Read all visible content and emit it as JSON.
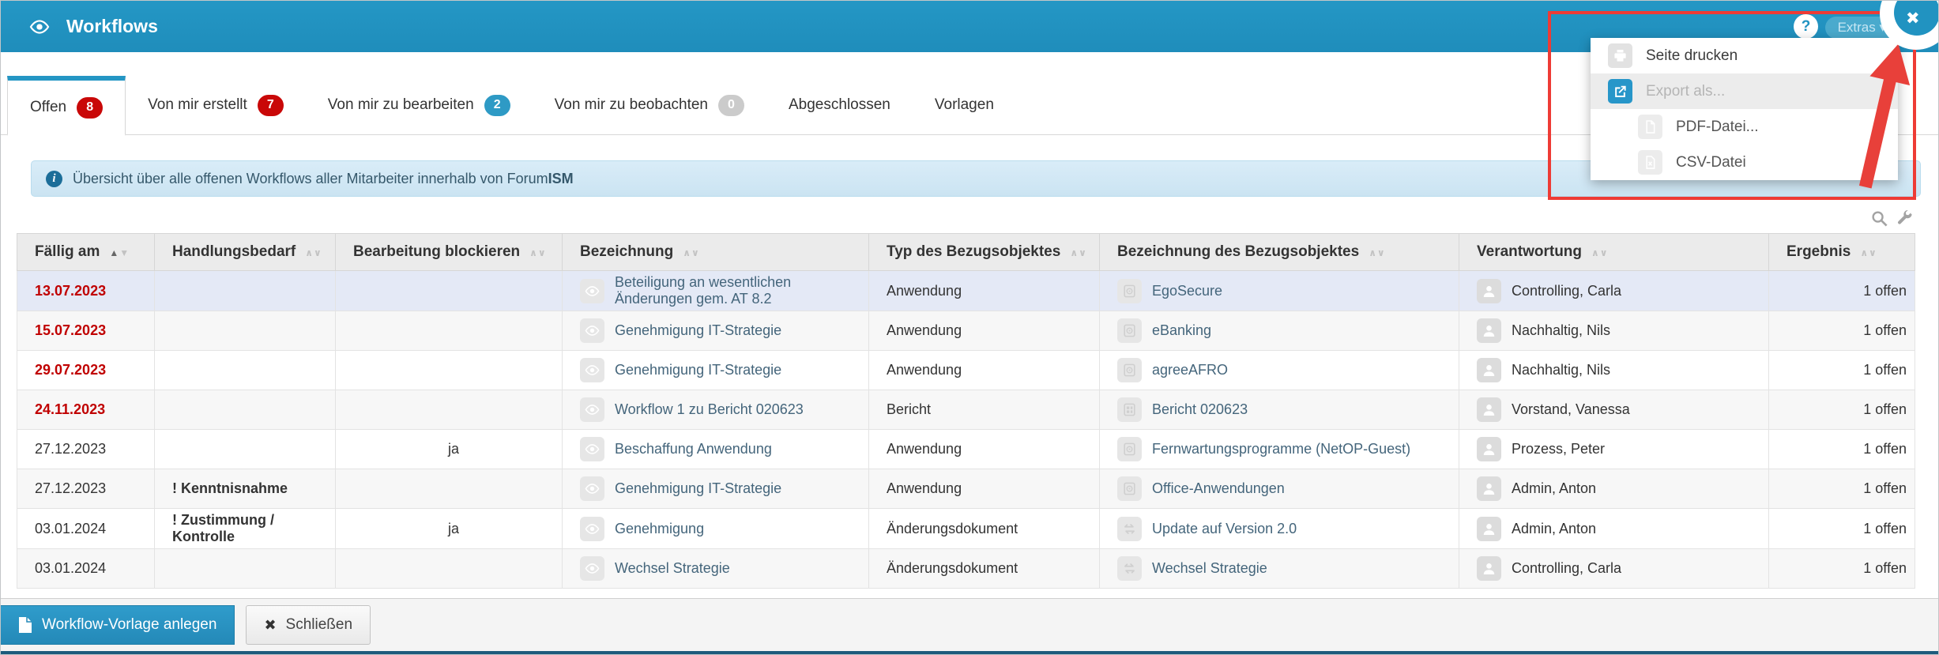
{
  "header": {
    "title": "Workflows",
    "help_label": "?",
    "extras_label": "Extras ▾",
    "close_label": "✖"
  },
  "tabs": [
    {
      "name": "offen",
      "label": "Offen",
      "badge": "8",
      "badge_color": "red",
      "active": true
    },
    {
      "name": "von-mir-erstellt",
      "label": "Von mir erstellt",
      "badge": "7",
      "badge_color": "red",
      "active": false
    },
    {
      "name": "von-mir-zu-bearbeiten",
      "label": "Von mir zu bearbeiten",
      "badge": "2",
      "badge_color": "blue",
      "active": false
    },
    {
      "name": "von-mir-zu-beobachten",
      "label": "Von mir zu beobachten",
      "badge": "0",
      "badge_color": "gray",
      "active": false
    },
    {
      "name": "abgeschlossen",
      "label": "Abgeschlossen",
      "badge": null,
      "badge_color": null,
      "active": false
    },
    {
      "name": "vorlagen",
      "label": "Vorlagen",
      "badge": null,
      "badge_color": null,
      "active": false
    }
  ],
  "banner": {
    "text": "Übersicht über alle offenen Workflows aller Mitarbeiter innerhalb von Forum",
    "text_bold": "ISM"
  },
  "menu": {
    "items": [
      {
        "name": "seite-drucken",
        "label": "Seite drucken",
        "icon": "printer",
        "style": "plain"
      },
      {
        "name": "export-als",
        "label": "Export als...",
        "icon": "export",
        "style": "highlight-muted"
      },
      {
        "name": "pdf-datei",
        "label": "PDF-Datei...",
        "icon": "pdf",
        "style": "indent"
      },
      {
        "name": "csv-datei",
        "label": "CSV-Datei",
        "icon": "csv",
        "style": "indent"
      }
    ]
  },
  "table": {
    "columns": [
      {
        "label": "Fällig am",
        "sorted": "asc"
      },
      {
        "label": "Handlungsbedarf",
        "sorted": null
      },
      {
        "label": "Bearbeitung blockieren",
        "sorted": null
      },
      {
        "label": "Bezeichnung",
        "sorted": null
      },
      {
        "label": "Typ des Bezugsobjektes",
        "sorted": null
      },
      {
        "label": "Bezeichnung des Bezugsobjektes",
        "sorted": null
      },
      {
        "label": "Verantwortung",
        "sorted": null
      },
      {
        "label": "Ergebnis",
        "sorted": null
      }
    ],
    "rows": [
      {
        "faellig": "13.07.2023",
        "overdue": true,
        "handlungsbedarf": "",
        "blockieren": "",
        "bezeichnung": "Beteiligung an wesentlichen Änderungen gem. AT 8.2",
        "typ": "Anwendung",
        "objekt": "EgoSecure",
        "objekt_icon": "app",
        "verantwortung": "Controlling, Carla",
        "ergebnis": "1 offen",
        "highlighted": true
      },
      {
        "faellig": "15.07.2023",
        "overdue": true,
        "handlungsbedarf": "",
        "blockieren": "",
        "bezeichnung": "Genehmigung IT-Strategie",
        "typ": "Anwendung",
        "objekt": "eBanking",
        "objekt_icon": "app",
        "verantwortung": "Nachhaltig, Nils",
        "ergebnis": "1 offen",
        "highlighted": false
      },
      {
        "faellig": "29.07.2023",
        "overdue": true,
        "handlungsbedarf": "",
        "blockieren": "",
        "bezeichnung": "Genehmigung IT-Strategie",
        "typ": "Anwendung",
        "objekt": "agreeAFRO",
        "objekt_icon": "app",
        "verantwortung": "Nachhaltig, Nils",
        "ergebnis": "1 offen",
        "highlighted": false
      },
      {
        "faellig": "24.11.2023",
        "overdue": true,
        "handlungsbedarf": "",
        "blockieren": "",
        "bezeichnung": "Workflow 1 zu Bericht 020623",
        "typ": "Bericht",
        "objekt": "Bericht 020623",
        "objekt_icon": "report",
        "verantwortung": "Vorstand, Vanessa",
        "ergebnis": "1 offen",
        "highlighted": false
      },
      {
        "faellig": "27.12.2023",
        "overdue": false,
        "handlungsbedarf": "",
        "blockieren": "ja",
        "bezeichnung": "Beschaffung Anwendung",
        "typ": "Anwendung",
        "objekt": "Fernwartungsprogramme (NetOP-Guest)",
        "objekt_icon": "app",
        "verantwortung": "Prozess, Peter",
        "ergebnis": "1 offen",
        "highlighted": false
      },
      {
        "faellig": "27.12.2023",
        "overdue": false,
        "handlungsbedarf": "! Kenntnisnahme",
        "blockieren": "",
        "bezeichnung": "Genehmigung IT-Strategie",
        "typ": "Anwendung",
        "objekt": "Office-Anwendungen",
        "objekt_icon": "app",
        "verantwortung": "Admin, Anton",
        "ergebnis": "1 offen",
        "highlighted": false
      },
      {
        "faellig": "03.01.2024",
        "overdue": false,
        "handlungsbedarf": "! Zustimmung / Kontrolle",
        "blockieren": "ja",
        "bezeichnung": "Genehmigung",
        "typ": "Änderungsdokument",
        "objekt": "Update auf Version 2.0",
        "objekt_icon": "swap",
        "verantwortung": "Admin, Anton",
        "ergebnis": "1 offen",
        "highlighted": false
      },
      {
        "faellig": "03.01.2024",
        "overdue": false,
        "handlungsbedarf": "",
        "blockieren": "",
        "bezeichnung": "Wechsel Strategie",
        "typ": "Änderungsdokument",
        "objekt": "Wechsel Strategie",
        "objekt_icon": "swap",
        "verantwortung": "Controlling, Carla",
        "ergebnis": "1 offen",
        "highlighted": false
      }
    ]
  },
  "footer": {
    "create_label": "Workflow-Vorlage anlegen",
    "close_label": "Schließen"
  },
  "colors": {
    "header_blue": "#2193c1",
    "badge_red": "#c90808",
    "badge_blue": "#2e9ac5",
    "badge_gray": "#cbcbcb",
    "overdue_red": "#c00000",
    "annotation_red": "#ee3b35",
    "row_highlight": "#e4e9f6"
  }
}
